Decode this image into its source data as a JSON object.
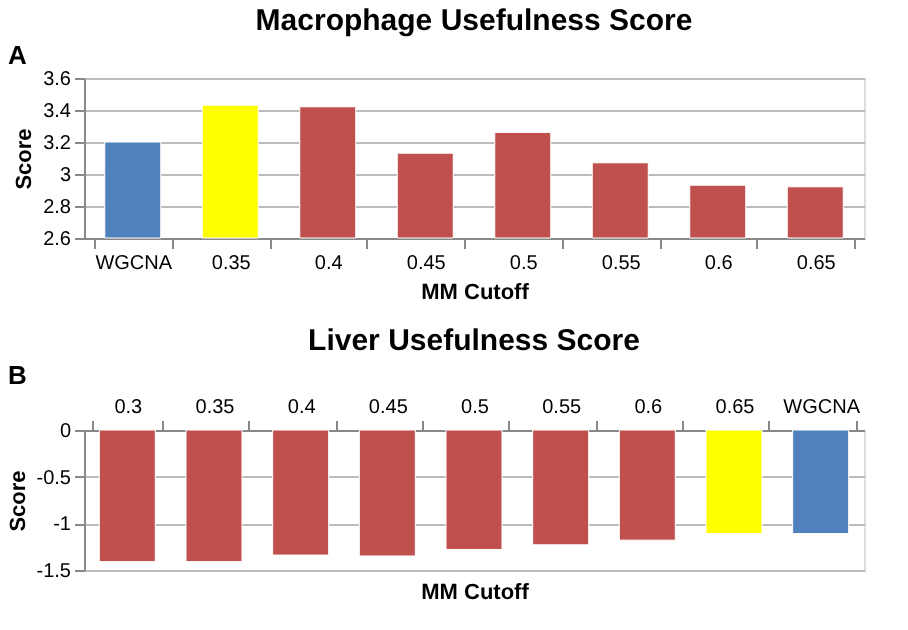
{
  "chart_data": [
    {
      "type": "bar",
      "title": "Macrophage Usefulness Score",
      "xlabel": "MM Cutoff",
      "ylabel": "Score",
      "annotations": [
        "A"
      ],
      "categories": [
        "WGCNA",
        "0.35",
        "0.4",
        "0.45",
        "0.5",
        "0.55",
        "0.6",
        "0.65"
      ],
      "values": [
        3.2,
        3.43,
        3.42,
        3.13,
        3.26,
        3.07,
        2.93,
        2.92
      ],
      "colors": [
        "#4f81bd",
        "#ffff00",
        "#c0504d",
        "#c0504d",
        "#c0504d",
        "#c0504d",
        "#c0504d",
        "#c0504d"
      ],
      "ylim": [
        2.6,
        3.6
      ],
      "yticks": [
        2.6,
        2.8,
        3,
        3.2,
        3.4,
        3.6
      ],
      "grid": "y"
    },
    {
      "type": "bar",
      "title": "Liver Usefulness Score",
      "xlabel": "MM Cutoff",
      "ylabel": "Score",
      "annotations": [
        "B"
      ],
      "categories": [
        "0.3",
        "0.35",
        "0.4",
        "0.45",
        "0.5",
        "0.55",
        "0.6",
        "0.65",
        "WGCNA"
      ],
      "values": [
        -1.41,
        -1.41,
        -1.34,
        -1.35,
        -1.28,
        -1.23,
        -1.18,
        -1.11,
        -1.11
      ],
      "colors": [
        "#c0504d",
        "#c0504d",
        "#c0504d",
        "#c0504d",
        "#c0504d",
        "#c0504d",
        "#c0504d",
        "#ffff00",
        "#4f81bd"
      ],
      "ylim": [
        -1.5,
        0
      ],
      "yticks": [
        -1.5,
        -1,
        -0.5,
        0
      ],
      "grid": "y"
    }
  ]
}
